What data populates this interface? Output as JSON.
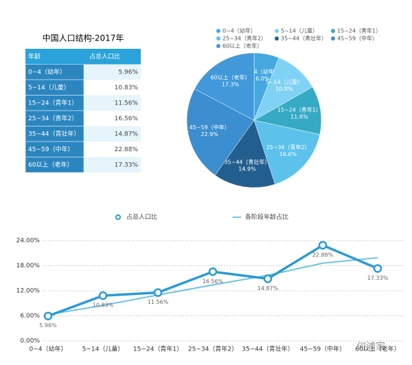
{
  "table": {
    "title": "中国人口结构-2017年",
    "header": [
      "年龄",
      "占总人口比"
    ],
    "rows": [
      [
        "0~4（幼年）",
        "5.96%"
      ],
      [
        "5~14（儿童）",
        "10.83%"
      ],
      [
        "15~24（青年1）",
        "11.56%"
      ],
      [
        "25~34（青年2）",
        "16.56%"
      ],
      [
        "35~44（青壮年）",
        "14.87%"
      ],
      [
        "45~59（中年）",
        "22.88%"
      ],
      [
        "60以上（老年）",
        "17.33%"
      ]
    ]
  },
  "watermark": "何浦家",
  "chart_data": [
    {
      "type": "pie",
      "categories": [
        "0~4（幼年）",
        "5~14（儿童）",
        "15~24（青年1）",
        "25~34（青年2）",
        "35~44（青壮年）",
        "45~59（中年）",
        "60以上（老年）"
      ],
      "values": [
        6.0,
        10.8,
        11.6,
        16.6,
        14.9,
        22.9,
        17.3
      ],
      "value_labels": [
        "6.0%",
        "10.8%",
        "11.6%",
        "16.6%",
        "14.9%",
        "22.9%",
        "17.3%"
      ],
      "colors": [
        "#45a8df",
        "#7fd2f4",
        "#36aac4",
        "#5cc2ec",
        "#225f8e",
        "#3b8ecf",
        "#4199da"
      ]
    },
    {
      "type": "line",
      "categories": [
        "0~4（幼年）",
        "5~14（儿童）",
        "15~24（青年1）",
        "25~34（青年2）",
        "35~44（青壮年）",
        "45~59（中年）",
        "60以上（老年）"
      ],
      "series": [
        {
          "name": "占总人口比",
          "color": "#2a9ad6",
          "values": [
            5.96,
            10.83,
            11.56,
            16.56,
            14.87,
            22.88,
            17.33
          ],
          "value_labels": [
            "5.96%",
            "10.83%",
            "11.56%",
            "16.56%",
            "14.87%",
            "22.88%",
            "17.33%"
          ]
        },
        {
          "name": "各阶段年龄占比",
          "color": "#6cc3e8",
          "values": [
            6.3,
            8.5,
            11.0,
            13.4,
            15.7,
            18.6,
            19.9
          ]
        }
      ],
      "ylim": [
        0,
        24
      ],
      "yticks": [
        {
          "value": 0,
          "label": "0.00%"
        },
        {
          "value": 6,
          "label": "6.00%"
        },
        {
          "value": 12,
          "label": "12.00%"
        },
        {
          "value": 18,
          "label": "18.00%"
        },
        {
          "value": 24,
          "label": "24.00%"
        }
      ],
      "grid": true
    }
  ]
}
